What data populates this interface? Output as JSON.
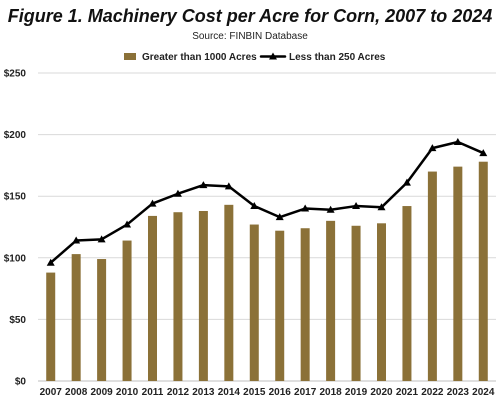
{
  "chart_data": {
    "type": "bar",
    "title": "Figure 1. Machinery Cost per Acre for Corn, 2007 to 2024",
    "subtitle": "Source: FINBIN Database",
    "xlabel": "",
    "ylabel": "",
    "categories": [
      "2007",
      "2008",
      "2009",
      "2010",
      "2011",
      "2012",
      "2013",
      "2014",
      "2015",
      "2016",
      "2017",
      "2018",
      "2019",
      "2020",
      "2021",
      "2022",
      "2023",
      "2024"
    ],
    "ylim": [
      0,
      250
    ],
    "yticks": [
      0,
      50,
      100,
      150,
      200,
      250
    ],
    "ytick_labels": [
      "$0",
      "$50",
      "$100",
      "$150",
      "$200",
      "$250"
    ],
    "grid": true,
    "legend_position": "top",
    "series": [
      {
        "name": "Greater than 1000 Acres",
        "kind": "bar",
        "color": "#8B7138",
        "values": [
          88,
          103,
          99,
          114,
          134,
          137,
          138,
          143,
          127,
          122,
          124,
          130,
          126,
          128,
          142,
          170,
          174,
          178
        ]
      },
      {
        "name": "Less than 250 Acres",
        "kind": "line",
        "marker": "triangle",
        "color": "#000000",
        "values": [
          96,
          114,
          115,
          127,
          144,
          152,
          159,
          158,
          142,
          133,
          140,
          139,
          142,
          141,
          161,
          189,
          194,
          185
        ]
      }
    ]
  }
}
